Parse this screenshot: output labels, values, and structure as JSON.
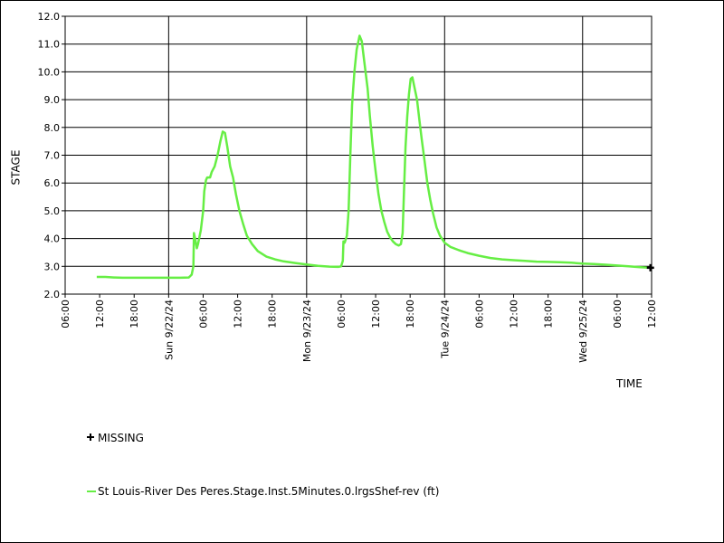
{
  "chart_data": {
    "type": "line",
    "ylabel": "STAGE",
    "xlabel": "TIME",
    "ylim": [
      2.0,
      12.0
    ],
    "yticks": [
      "2.0",
      "3.0",
      "4.0",
      "5.0",
      "6.0",
      "7.0",
      "8.0",
      "9.0",
      "10.0",
      "11.0",
      "12.0"
    ],
    "xlim_hours": [
      0,
      102
    ],
    "xticks": [
      {
        "h": 0,
        "label": "06:00"
      },
      {
        "h": 6,
        "label": "12:00"
      },
      {
        "h": 12,
        "label": "18:00"
      },
      {
        "h": 18,
        "label": "Sun 9/22/24"
      },
      {
        "h": 24,
        "label": "06:00"
      },
      {
        "h": 30,
        "label": "12:00"
      },
      {
        "h": 36,
        "label": "18:00"
      },
      {
        "h": 42,
        "label": "Mon 9/23/24"
      },
      {
        "h": 48,
        "label": "06:00"
      },
      {
        "h": 54,
        "label": "12:00"
      },
      {
        "h": 60,
        "label": "18:00"
      },
      {
        "h": 66,
        "label": "Tue 9/24/24"
      },
      {
        "h": 72,
        "label": "06:00"
      },
      {
        "h": 78,
        "label": "12:00"
      },
      {
        "h": 84,
        "label": "18:00"
      },
      {
        "h": 90,
        "label": "Wed 9/25/24"
      },
      {
        "h": 96,
        "label": "06:00"
      },
      {
        "h": 102,
        "label": "12:00"
      }
    ],
    "grid": true,
    "series": [
      {
        "name": "St Louis-River Des Peres.Stage.Inst.5Minutes.0.lrgsShef-rev (ft)",
        "color": "#66ee44",
        "points": [
          [
            5.5,
            2.62
          ],
          [
            7.0,
            2.62
          ],
          [
            8.5,
            2.6
          ],
          [
            10,
            2.59
          ],
          [
            12,
            2.59
          ],
          [
            14,
            2.59
          ],
          [
            16,
            2.59
          ],
          [
            18,
            2.59
          ],
          [
            20,
            2.59
          ],
          [
            21.5,
            2.6
          ],
          [
            22.0,
            2.7
          ],
          [
            22.3,
            3.0
          ],
          [
            22.4,
            4.2
          ],
          [
            22.6,
            4.0
          ],
          [
            22.9,
            3.65
          ],
          [
            23.1,
            3.8
          ],
          [
            23.3,
            4.0
          ],
          [
            23.6,
            4.3
          ],
          [
            24.0,
            5.0
          ],
          [
            24.2,
            5.7
          ],
          [
            24.5,
            6.1
          ],
          [
            24.7,
            6.2
          ],
          [
            25.2,
            6.2
          ],
          [
            25.5,
            6.4
          ],
          [
            26.0,
            6.6
          ],
          [
            26.5,
            7.0
          ],
          [
            27.0,
            7.5
          ],
          [
            27.4,
            7.85
          ],
          [
            27.8,
            7.8
          ],
          [
            28.2,
            7.3
          ],
          [
            28.7,
            6.6
          ],
          [
            29.2,
            6.2
          ],
          [
            29.7,
            5.6
          ],
          [
            30.3,
            5.0
          ],
          [
            31.0,
            4.5
          ],
          [
            31.6,
            4.1
          ],
          [
            32.5,
            3.8
          ],
          [
            33.5,
            3.55
          ],
          [
            35,
            3.35
          ],
          [
            36.5,
            3.25
          ],
          [
            38,
            3.18
          ],
          [
            40,
            3.12
          ],
          [
            42,
            3.07
          ],
          [
            44,
            3.02
          ],
          [
            46,
            2.99
          ],
          [
            47.5,
            2.98
          ],
          [
            48.0,
            3.0
          ],
          [
            48.3,
            3.2
          ],
          [
            48.4,
            3.9
          ],
          [
            48.6,
            3.85
          ],
          [
            49.0,
            4.1
          ],
          [
            49.3,
            5.0
          ],
          [
            49.6,
            7.0
          ],
          [
            49.9,
            8.8
          ],
          [
            50.3,
            10.0
          ],
          [
            50.7,
            10.8
          ],
          [
            51.2,
            11.3
          ],
          [
            51.6,
            11.1
          ],
          [
            52.0,
            10.4
          ],
          [
            52.6,
            9.4
          ],
          [
            53.0,
            8.4
          ],
          [
            53.5,
            7.3
          ],
          [
            54.0,
            6.4
          ],
          [
            54.5,
            5.6
          ],
          [
            55.0,
            5.0
          ],
          [
            55.5,
            4.6
          ],
          [
            56.0,
            4.25
          ],
          [
            56.5,
            4.05
          ],
          [
            57.0,
            3.9
          ],
          [
            57.5,
            3.8
          ],
          [
            58.0,
            3.75
          ],
          [
            58.4,
            3.8
          ],
          [
            58.7,
            4.2
          ],
          [
            58.9,
            5.5
          ],
          [
            59.2,
            7.3
          ],
          [
            59.5,
            8.4
          ],
          [
            59.8,
            9.2
          ],
          [
            60.1,
            9.75
          ],
          [
            60.4,
            9.8
          ],
          [
            60.7,
            9.5
          ],
          [
            61.2,
            9.0
          ],
          [
            61.6,
            8.3
          ],
          [
            62.0,
            7.6
          ],
          [
            62.5,
            6.8
          ],
          [
            63.0,
            6.0
          ],
          [
            63.5,
            5.4
          ],
          [
            64.0,
            4.9
          ],
          [
            64.6,
            4.4
          ],
          [
            65.2,
            4.1
          ],
          [
            66.0,
            3.85
          ],
          [
            67.0,
            3.7
          ],
          [
            68.5,
            3.58
          ],
          [
            70,
            3.48
          ],
          [
            72,
            3.38
          ],
          [
            74,
            3.3
          ],
          [
            76,
            3.25
          ],
          [
            78,
            3.22
          ],
          [
            80,
            3.2
          ],
          [
            82,
            3.17
          ],
          [
            84,
            3.16
          ],
          [
            86,
            3.15
          ],
          [
            88,
            3.13
          ],
          [
            90,
            3.1
          ],
          [
            92,
            3.08
          ],
          [
            94,
            3.06
          ],
          [
            96,
            3.03
          ],
          [
            98,
            3.0
          ],
          [
            100,
            2.97
          ],
          [
            101.5,
            2.95
          ]
        ]
      }
    ],
    "legend": [
      {
        "label": "MISSING",
        "marker": "cross"
      },
      {
        "label": "St Louis-River Des Peres.Stage.Inst.5Minutes.0.lrgsShef-rev (ft)",
        "marker": "line",
        "color": "#66ee44"
      }
    ],
    "end_marker": {
      "h": 101.8,
      "y": 2.95
    }
  }
}
